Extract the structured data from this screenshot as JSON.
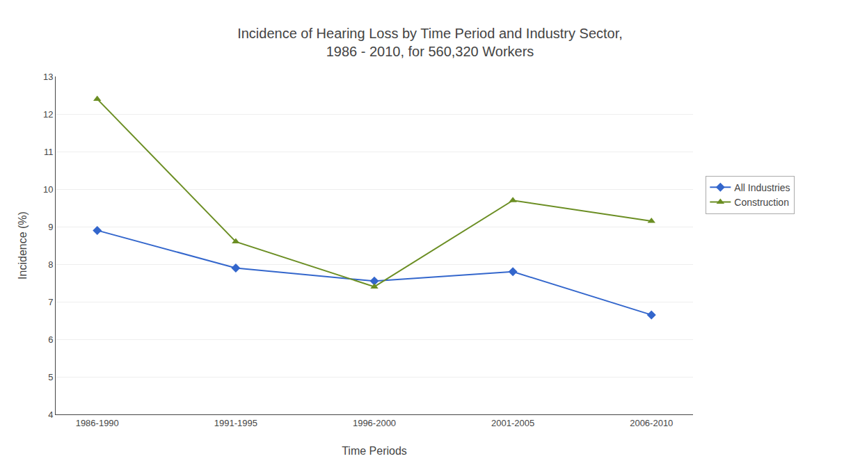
{
  "chart_data": {
    "type": "line",
    "title": "Incidence of Hearing Loss by Time Period and Industry Sector,\n1986 - 2010, for 560,320 Workers",
    "xlabel": "Time Periods",
    "ylabel": "Incidence (%)",
    "categories": [
      "1986-1990",
      "1991-1995",
      "1996-2000",
      "2001-2005",
      "2006-2010"
    ],
    "series": [
      {
        "name": "All Industries",
        "color": "#3366CC",
        "marker": "diamond",
        "values": [
          8.9,
          7.9,
          7.55,
          7.8,
          6.65
        ]
      },
      {
        "name": "Construction",
        "color": "#6B8E23",
        "marker": "triangle-up",
        "values": [
          12.4,
          8.6,
          7.4,
          9.7,
          9.15
        ]
      }
    ],
    "ylim": [
      4,
      13
    ],
    "yticks": [
      4,
      5,
      6,
      7,
      8,
      9,
      10,
      11,
      12,
      13
    ],
    "grid": true,
    "legend": "right"
  }
}
